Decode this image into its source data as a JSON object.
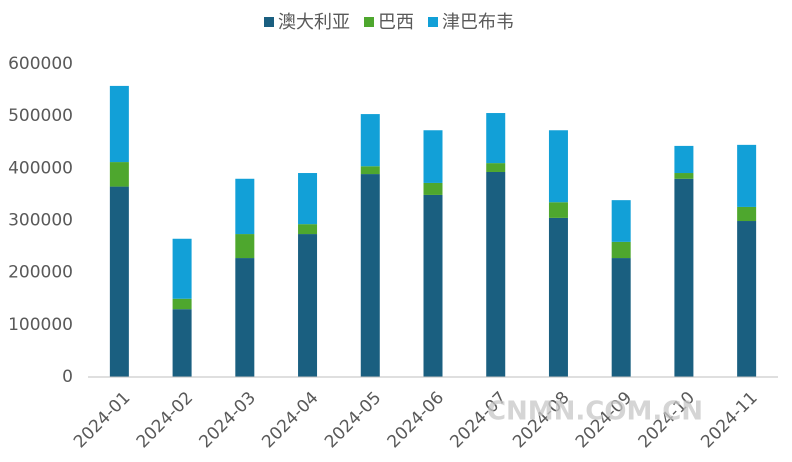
{
  "chart_data": {
    "type": "stacked_bar",
    "categories": [
      "2024-01",
      "2024-02",
      "2024-03",
      "2024-04",
      "2024-05",
      "2024-06",
      "2024-07",
      "2024-08",
      "2024-09",
      "2024-10",
      "2024-11"
    ],
    "series": [
      {
        "name": "澳大利亚",
        "color": "#1a5f80",
        "values": [
          365000,
          130000,
          228000,
          274000,
          389000,
          349000,
          393000,
          305000,
          228000,
          380000,
          299000
        ]
      },
      {
        "name": "巴西",
        "color": "#4ea72e",
        "values": [
          47000,
          20000,
          46000,
          19000,
          15000,
          23000,
          17000,
          30000,
          31000,
          11000,
          27000
        ]
      },
      {
        "name": "津巴布韦",
        "color": "#12a0d7",
        "values": [
          146000,
          115000,
          106000,
          98000,
          100000,
          101000,
          96000,
          138000,
          80000,
          52000,
          119000
        ]
      }
    ],
    "ylim": [
      0,
      600000
    ],
    "yticks": [
      0,
      100000,
      200000,
      300000,
      400000,
      500000,
      600000
    ],
    "legend": "top",
    "grid": false,
    "watermark": "CNMN.COM.CN"
  }
}
